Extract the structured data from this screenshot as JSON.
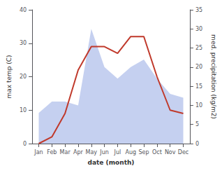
{
  "chart_data": {
    "type": "line",
    "categories": [
      "Jan",
      "Feb",
      "Mar",
      "Apr",
      "May",
      "Jun",
      "Jul",
      "Aug",
      "Sep",
      "Oct",
      "Nov",
      "Dec"
    ],
    "series": [
      {
        "type": "area",
        "color": "#c5d0f0",
        "axis": "y2",
        "values": [
          8,
          11,
          11,
          10,
          30,
          20,
          17,
          20,
          22,
          17,
          13,
          12
        ]
      },
      {
        "type": "line",
        "color": "#c0392b",
        "values": [
          0,
          2,
          9,
          22,
          29,
          29,
          27,
          32,
          32,
          20,
          10,
          9
        ]
      }
    ],
    "xlabel": "date (month)",
    "ylabel": "max temp (C)",
    "y2label": "med. precipitation (kg/m2)",
    "ylim": [
      0,
      40
    ],
    "yticks": [
      0,
      10,
      20,
      30,
      40
    ],
    "y2lim": [
      0,
      35
    ],
    "y2ticks": [
      0,
      5,
      10,
      15,
      20,
      25,
      30,
      35
    ],
    "grid": false
  }
}
